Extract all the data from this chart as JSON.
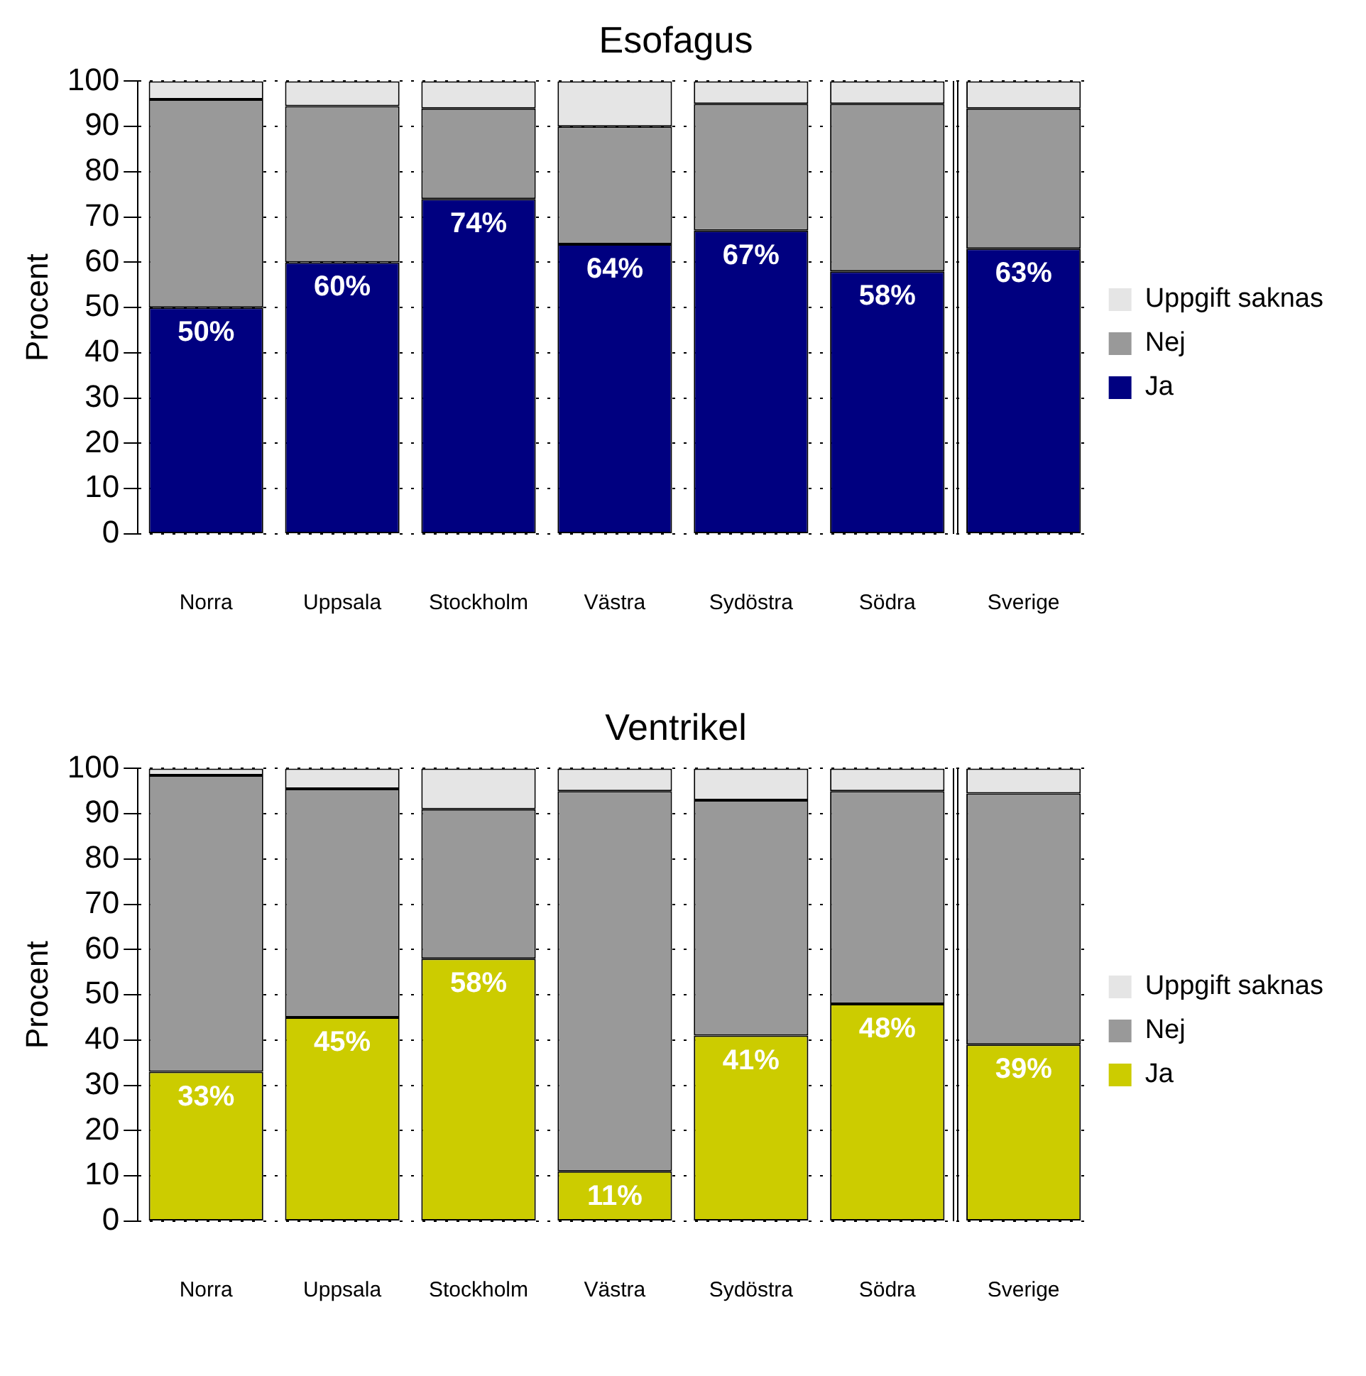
{
  "chart_data": [
    {
      "type": "bar",
      "title": "Esofagus",
      "ylabel": "Procent",
      "categories": [
        "Norra",
        "Uppsala",
        "Stockholm",
        "Västra",
        "Sydöstra",
        "Södra",
        "Sverige"
      ],
      "stacked": true,
      "ylim": [
        0,
        100
      ],
      "yticks": [
        0,
        10,
        20,
        30,
        40,
        50,
        60,
        70,
        80,
        90,
        100
      ],
      "grid": "y",
      "legend": "right",
      "series": [
        {
          "name": "Ja",
          "color": "#000080",
          "values": [
            50,
            60,
            74,
            64,
            67,
            58,
            63
          ],
          "value_labels": [
            "50%",
            "60%",
            "74%",
            "64%",
            "67%",
            "58%",
            "63%"
          ]
        },
        {
          "name": "Nej",
          "color": "#999999",
          "values": [
            46,
            34.5,
            20,
            26,
            28,
            37,
            31
          ]
        },
        {
          "name": "Uppgift saknas",
          "color": "#e5e5e5",
          "values": [
            4,
            5.5,
            6,
            10,
            5,
            5,
            6
          ]
        }
      ]
    },
    {
      "type": "bar",
      "title": "Ventrikel",
      "ylabel": "Procent",
      "categories": [
        "Norra",
        "Uppsala",
        "Stockholm",
        "Västra",
        "Sydöstra",
        "Södra",
        "Sverige"
      ],
      "stacked": true,
      "ylim": [
        0,
        100
      ],
      "yticks": [
        0,
        10,
        20,
        30,
        40,
        50,
        60,
        70,
        80,
        90,
        100
      ],
      "grid": "y",
      "legend": "right",
      "series": [
        {
          "name": "Ja",
          "color": "#cccc00",
          "values": [
            33,
            45,
            58,
            11,
            41,
            48,
            39
          ],
          "value_labels": [
            "33%",
            "45%",
            "58%",
            "11%",
            "41%",
            "48%",
            "39%"
          ]
        },
        {
          "name": "Nej",
          "color": "#999999",
          "values": [
            65.5,
            50.5,
            33,
            84,
            52,
            47,
            55.5
          ]
        },
        {
          "name": "Uppgift saknas",
          "color": "#e5e5e5",
          "values": [
            1.5,
            4.5,
            9,
            5,
            7,
            5,
            5.5
          ]
        }
      ]
    }
  ]
}
